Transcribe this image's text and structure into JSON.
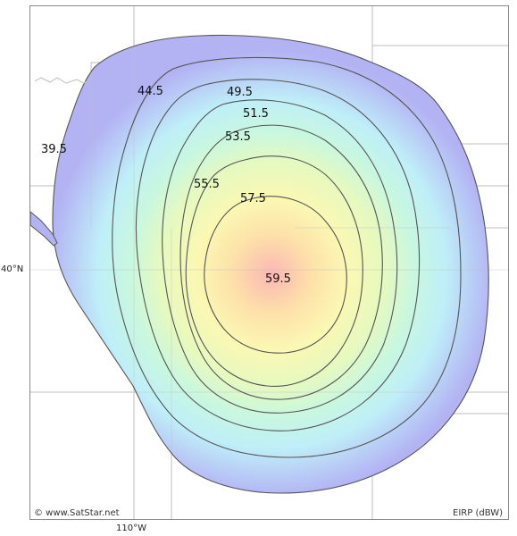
{
  "map": {
    "copyright": "© www.SatStar.net",
    "legend_unit": "EIRP (dBW)",
    "lat_label": "40°N",
    "lon_label": "110°W",
    "colors": {
      "outer": "#b3b3f4",
      "ring2": "#b9cdf6",
      "ring3": "#bfeff8",
      "ring4": "#c8f7e0",
      "ring5": "#e6f9bf",
      "ring6": "#fbf8b3",
      "ring7": "#fde1a9",
      "center": "#fcb7b5",
      "contour_line": "#555555",
      "grid": "#bdbdbd"
    },
    "contours": [
      {
        "value": "39.5"
      },
      {
        "value": "44.5"
      },
      {
        "value": "49.5"
      },
      {
        "value": "51.5"
      },
      {
        "value": "53.5"
      },
      {
        "value": "55.5"
      },
      {
        "value": "57.5"
      },
      {
        "value": "59.5"
      }
    ]
  }
}
